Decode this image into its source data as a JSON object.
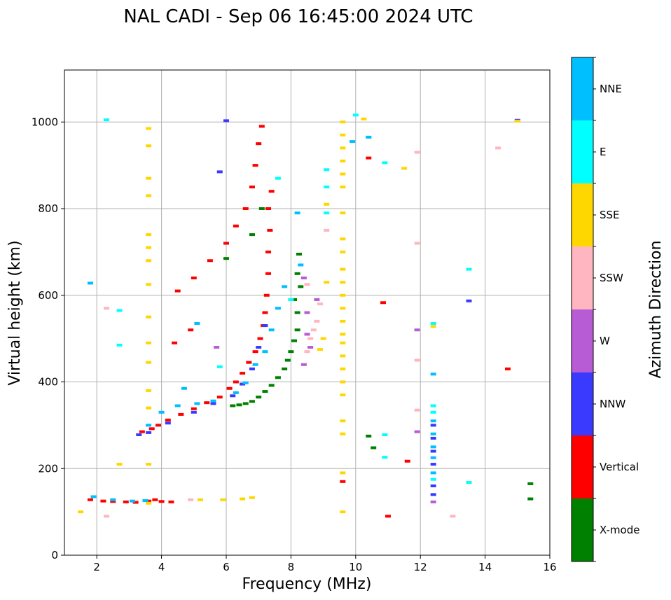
{
  "chart_data": {
    "type": "scatter",
    "title": "NAL CADI - Sep 06 16:45:00 2024 UTC",
    "xlabel": "Frequency (MHz)",
    "ylabel": "Virtual height (km)",
    "xlim": [
      1,
      16
    ],
    "ylim": [
      0,
      1120
    ],
    "xticks": [
      2,
      4,
      6,
      8,
      10,
      12,
      14,
      16
    ],
    "yticks": [
      0,
      200,
      400,
      600,
      800,
      1000
    ],
    "grid": true,
    "colorbar": {
      "title": "Azimuth Direction",
      "categories": [
        {
          "name": "X-mode",
          "color": "#008000"
        },
        {
          "name": "Vertical",
          "color": "#ff0000"
        },
        {
          "name": "NNW",
          "color": "#3a3aff"
        },
        {
          "name": "W",
          "color": "#b85cd6"
        },
        {
          "name": "SSW",
          "color": "#ffb6c1"
        },
        {
          "name": "SSE",
          "color": "#ffd700"
        },
        {
          "name": "E",
          "color": "#00ffff"
        },
        {
          "name": "NNE",
          "color": "#00bfff"
        }
      ]
    },
    "series": [
      {
        "name": "X-mode",
        "points": [
          [
            6.2,
            345
          ],
          [
            6.4,
            347
          ],
          [
            6.6,
            350
          ],
          [
            6.8,
            355
          ],
          [
            7.0,
            365
          ],
          [
            7.2,
            378
          ],
          [
            7.4,
            392
          ],
          [
            7.6,
            410
          ],
          [
            7.8,
            430
          ],
          [
            7.9,
            450
          ],
          [
            8.0,
            470
          ],
          [
            8.1,
            495
          ],
          [
            8.2,
            520
          ],
          [
            8.2,
            560
          ],
          [
            8.1,
            590
          ],
          [
            8.3,
            620
          ],
          [
            8.2,
            650
          ],
          [
            8.25,
            695
          ],
          [
            7.1,
            800
          ],
          [
            6.8,
            740
          ],
          [
            6.0,
            685
          ],
          [
            10.4,
            275
          ],
          [
            10.55,
            248
          ],
          [
            15.4,
            165
          ],
          [
            15.4,
            130
          ]
        ]
      },
      {
        "name": "Vertical",
        "points": [
          [
            1.8,
            128
          ],
          [
            2.2,
            125
          ],
          [
            2.5,
            124
          ],
          [
            2.9,
            123
          ],
          [
            3.2,
            122
          ],
          [
            3.6,
            125
          ],
          [
            3.8,
            128
          ],
          [
            4.0,
            124
          ],
          [
            4.3,
            123
          ],
          [
            3.4,
            285
          ],
          [
            3.7,
            292
          ],
          [
            3.9,
            300
          ],
          [
            4.2,
            312
          ],
          [
            4.6,
            325
          ],
          [
            5.0,
            338
          ],
          [
            5.4,
            352
          ],
          [
            5.8,
            365
          ],
          [
            6.1,
            385
          ],
          [
            6.3,
            400
          ],
          [
            6.5,
            420
          ],
          [
            6.7,
            445
          ],
          [
            6.9,
            470
          ],
          [
            7.05,
            500
          ],
          [
            7.15,
            530
          ],
          [
            7.2,
            560
          ],
          [
            7.25,
            600
          ],
          [
            7.3,
            650
          ],
          [
            7.3,
            700
          ],
          [
            7.35,
            750
          ],
          [
            7.3,
            800
          ],
          [
            7.4,
            840
          ],
          [
            4.5,
            610
          ],
          [
            5.0,
            640
          ],
          [
            5.5,
            680
          ],
          [
            6.0,
            720
          ],
          [
            6.3,
            760
          ],
          [
            6.6,
            800
          ],
          [
            6.8,
            850
          ],
          [
            6.9,
            900
          ],
          [
            7.0,
            950
          ],
          [
            7.1,
            990
          ],
          [
            4.4,
            490
          ],
          [
            4.9,
            520
          ],
          [
            9.6,
            170
          ],
          [
            11.0,
            90
          ],
          [
            11.6,
            217
          ],
          [
            10.85,
            583
          ],
          [
            14.7,
            430
          ],
          [
            10.4,
            917
          ]
        ]
      },
      {
        "name": "NNW",
        "points": [
          [
            3.3,
            278
          ],
          [
            3.6,
            283
          ],
          [
            4.2,
            305
          ],
          [
            5.0,
            330
          ],
          [
            5.6,
            350
          ],
          [
            6.2,
            368
          ],
          [
            6.5,
            395
          ],
          [
            6.8,
            430
          ],
          [
            7.0,
            480
          ],
          [
            7.2,
            530
          ],
          [
            12.4,
            300
          ],
          [
            12.4,
            270
          ],
          [
            12.4,
            240
          ],
          [
            12.4,
            210
          ],
          [
            12.4,
            160
          ],
          [
            12.4,
            140
          ],
          [
            13.5,
            587
          ],
          [
            15.0,
            1004
          ],
          [
            6.0,
            1003
          ],
          [
            5.8,
            885
          ]
        ]
      },
      {
        "name": "W",
        "points": [
          [
            8.4,
            640
          ],
          [
            8.5,
            560
          ],
          [
            8.5,
            510
          ],
          [
            8.6,
            480
          ],
          [
            8.4,
            440
          ],
          [
            8.8,
            590
          ],
          [
            12.4,
            123
          ],
          [
            11.9,
            285
          ],
          [
            11.9,
            520
          ],
          [
            5.7,
            480
          ]
        ]
      },
      {
        "name": "SSW",
        "points": [
          [
            8.6,
            500
          ],
          [
            8.7,
            520
          ],
          [
            8.8,
            540
          ],
          [
            8.9,
            580
          ],
          [
            8.5,
            470
          ],
          [
            8.5,
            625
          ],
          [
            9.1,
            750
          ],
          [
            13.0,
            90
          ],
          [
            14.4,
            940
          ],
          [
            11.9,
            930
          ],
          [
            11.9,
            720
          ],
          [
            11.9,
            335
          ],
          [
            11.9,
            450
          ],
          [
            2.3,
            90
          ],
          [
            2.3,
            570
          ],
          [
            4.9,
            128
          ]
        ]
      },
      {
        "name": "SSE",
        "points": [
          [
            3.6,
            985
          ],
          [
            3.6,
            945
          ],
          [
            3.6,
            870
          ],
          [
            3.6,
            830
          ],
          [
            3.6,
            740
          ],
          [
            3.6,
            710
          ],
          [
            3.6,
            680
          ],
          [
            3.6,
            625
          ],
          [
            3.6,
            550
          ],
          [
            3.6,
            490
          ],
          [
            3.6,
            445
          ],
          [
            3.6,
            380
          ],
          [
            3.6,
            340
          ],
          [
            3.6,
            210
          ],
          [
            3.6,
            120
          ],
          [
            9.6,
            1000
          ],
          [
            9.6,
            970
          ],
          [
            9.6,
            940
          ],
          [
            9.6,
            910
          ],
          [
            9.6,
            880
          ],
          [
            9.6,
            850
          ],
          [
            9.6,
            790
          ],
          [
            9.6,
            730
          ],
          [
            9.6,
            700
          ],
          [
            9.6,
            660
          ],
          [
            9.6,
            630
          ],
          [
            9.6,
            600
          ],
          [
            9.6,
            570
          ],
          [
            9.6,
            540
          ],
          [
            9.6,
            510
          ],
          [
            9.6,
            490
          ],
          [
            9.6,
            460
          ],
          [
            9.6,
            430
          ],
          [
            9.6,
            400
          ],
          [
            9.6,
            370
          ],
          [
            9.6,
            310
          ],
          [
            9.6,
            280
          ],
          [
            9.6,
            190
          ],
          [
            9.6,
            100
          ],
          [
            9.1,
            810
          ],
          [
            9.1,
            630
          ],
          [
            9.0,
            500
          ],
          [
            8.9,
            475
          ],
          [
            5.2,
            128
          ],
          [
            5.9,
            128
          ],
          [
            6.5,
            130
          ],
          [
            6.8,
            133
          ],
          [
            12.4,
            528
          ],
          [
            11.5,
            893
          ],
          [
            15.0,
            1002
          ],
          [
            10.25,
            1007
          ],
          [
            1.5,
            100
          ],
          [
            2.7,
            210
          ]
        ]
      },
      {
        "name": "E",
        "points": [
          [
            9.1,
            890
          ],
          [
            9.1,
            850
          ],
          [
            9.1,
            790
          ],
          [
            10.0,
            1016
          ],
          [
            10.4,
            965
          ],
          [
            10.9,
            906
          ],
          [
            10.9,
            278
          ],
          [
            10.9,
            226
          ],
          [
            12.4,
            535
          ],
          [
            12.4,
            345
          ],
          [
            12.4,
            330
          ],
          [
            12.4,
            175
          ],
          [
            13.5,
            660
          ],
          [
            13.5,
            168
          ],
          [
            2.7,
            565
          ],
          [
            2.7,
            485
          ],
          [
            2.3,
            1005
          ],
          [
            7.6,
            870
          ],
          [
            5.8,
            435
          ],
          [
            8.0,
            590
          ]
        ]
      },
      {
        "name": "NNE",
        "points": [
          [
            1.9,
            135
          ],
          [
            2.5,
            128
          ],
          [
            3.1,
            125
          ],
          [
            3.5,
            126
          ],
          [
            3.6,
            300
          ],
          [
            4.0,
            330
          ],
          [
            4.5,
            345
          ],
          [
            5.1,
            350
          ],
          [
            5.6,
            356
          ],
          [
            6.3,
            375
          ],
          [
            6.6,
            398
          ],
          [
            6.9,
            440
          ],
          [
            7.2,
            470
          ],
          [
            7.4,
            520
          ],
          [
            7.6,
            570
          ],
          [
            7.8,
            620
          ],
          [
            12.4,
            310
          ],
          [
            12.4,
            280
          ],
          [
            12.4,
            250
          ],
          [
            12.4,
            225
          ],
          [
            12.4,
            190
          ],
          [
            12.4,
            418
          ],
          [
            8.3,
            670
          ],
          [
            8.2,
            790
          ],
          [
            9.9,
            955
          ],
          [
            10.4,
            965
          ],
          [
            1.8,
            628
          ],
          [
            4.7,
            385
          ],
          [
            5.1,
            535
          ]
        ]
      }
    ]
  }
}
